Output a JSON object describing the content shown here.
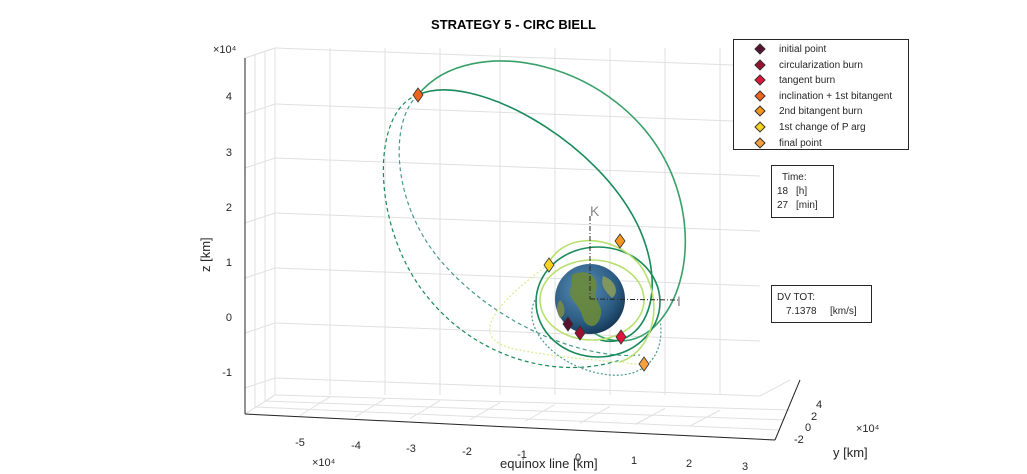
{
  "chart_data": {
    "type": "line",
    "title": "STRATEGY 5 - CIRC BIELL",
    "xlabel": "equinox line [km]",
    "ylabel": "y [km]",
    "zlabel": "z [km]",
    "x_exponent": "×10⁴",
    "y_exponent": "×10⁴",
    "z_exponent": "×10⁴",
    "x_ticks": [
      "-5",
      "-4",
      "-3",
      "-2",
      "-1",
      "0",
      "1",
      "2",
      "3"
    ],
    "y_ticks": [
      "-2",
      "0",
      "2",
      "4"
    ],
    "z_ticks": [
      "-1",
      "0",
      "1",
      "2",
      "3",
      "4"
    ],
    "grid": true,
    "legend_placement": "top-right",
    "axis_labels_3d": {
      "k": "K",
      "i": "I"
    },
    "series": [
      {
        "name": "initial point",
        "color": "#5a1030",
        "marker": "diamond"
      },
      {
        "name": "circularization burn",
        "color": "#9a1030",
        "marker": "diamond"
      },
      {
        "name": "tangent burn",
        "color": "#e0143c",
        "marker": "diamond"
      },
      {
        "name": "inclination + 1st bitangent",
        "color": "#f0641e",
        "marker": "diamond"
      },
      {
        "name": "2nd bitangent burn",
        "color": "#f5961e",
        "marker": "diamond"
      },
      {
        "name": "1st change of P arg",
        "color": "#f8d21c",
        "marker": "diamond"
      },
      {
        "name": "final point",
        "color": "#f5a040",
        "marker": "diamond"
      }
    ],
    "orbit_colors": {
      "dark": "#1a8a5a",
      "mid": "#3aa06a",
      "light": "#b8e070",
      "pale": "#d8ec90"
    }
  },
  "time_box": {
    "heading": "Time:",
    "hours_value": "18",
    "hours_unit": "[h]",
    "minutes_value": "27",
    "minutes_unit": "[min]"
  },
  "dv_box": {
    "heading": "DV TOT:",
    "value": "7.1378",
    "unit": "[km/s]"
  }
}
